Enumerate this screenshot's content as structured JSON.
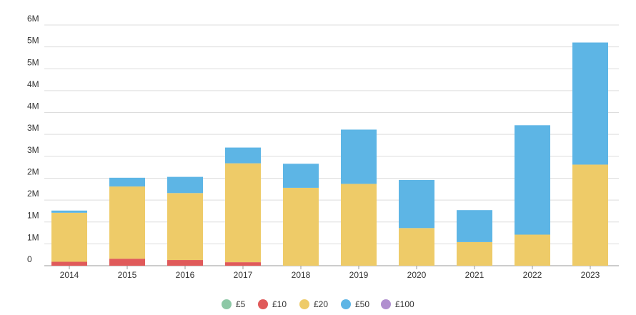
{
  "chart_data": {
    "type": "bar",
    "stacked": true,
    "categories": [
      "2014",
      "2015",
      "2016",
      "2017",
      "2018",
      "2019",
      "2020",
      "2021",
      "2022",
      "2023"
    ],
    "y_tick_labels": [
      "0",
      "1M",
      "1M",
      "2M",
      "2M",
      "3M",
      "3M",
      "4M",
      "4M",
      "5M",
      "5M",
      "6M"
    ],
    "ylim": [
      0,
      5.5
    ],
    "grid": true,
    "legend_position": "bottom-center",
    "series": [
      {
        "name": "£5",
        "color": "#8dc8a6",
        "values": [
          0,
          0,
          0,
          0,
          0,
          0,
          0,
          0,
          0,
          0
        ]
      },
      {
        "name": "£10",
        "color": "#e05a5a",
        "values": [
          0.09,
          0.16,
          0.13,
          0.08,
          0,
          0,
          0,
          0,
          0,
          0
        ]
      },
      {
        "name": "£20",
        "color": "#eecb68",
        "values": [
          1.12,
          1.65,
          1.53,
          2.26,
          1.78,
          1.87,
          0.86,
          0.54,
          0.71,
          2.31
        ]
      },
      {
        "name": "£50",
        "color": "#5db5e5",
        "values": [
          0.05,
          0.2,
          0.37,
          0.36,
          0.55,
          1.24,
          1.1,
          0.73,
          2.5,
          2.79
        ]
      },
      {
        "name": "£100",
        "color": "#b08fcf",
        "values": [
          0,
          0,
          0,
          0,
          0,
          0,
          0,
          0,
          0,
          0
        ]
      }
    ]
  }
}
